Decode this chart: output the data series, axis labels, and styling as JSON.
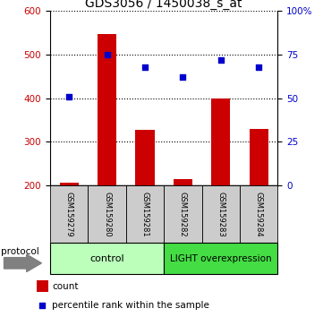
{
  "title": "GDS3056 / 1450038_s_at",
  "samples": [
    "GSM159279",
    "GSM159280",
    "GSM159281",
    "GSM159282",
    "GSM159283",
    "GSM159284"
  ],
  "counts": [
    207,
    548,
    328,
    215,
    400,
    330
  ],
  "percentile_ranks": [
    51,
    75,
    68,
    62,
    72,
    68
  ],
  "ylim_left": [
    200,
    600
  ],
  "ylim_right": [
    0,
    100
  ],
  "yticks_left": [
    200,
    300,
    400,
    500,
    600
  ],
  "yticks_right": [
    0,
    25,
    50,
    75,
    100
  ],
  "ytick_labels_right": [
    "0",
    "25",
    "50",
    "75",
    "100%"
  ],
  "control_label": "control",
  "overexpression_label": "LIGHT overexpression",
  "bar_color": "#cc0000",
  "scatter_color": "#0000cc",
  "bar_width": 0.5,
  "protocol_label": "protocol",
  "legend_count_label": "count",
  "legend_pct_label": "percentile rank within the sample",
  "title_fontsize": 10,
  "tick_fontsize": 7.5,
  "sample_box_color": "#cccccc",
  "control_box_color": "#bbffbb",
  "overexpression_box_color": "#44dd44",
  "bg_color": "#ffffff"
}
